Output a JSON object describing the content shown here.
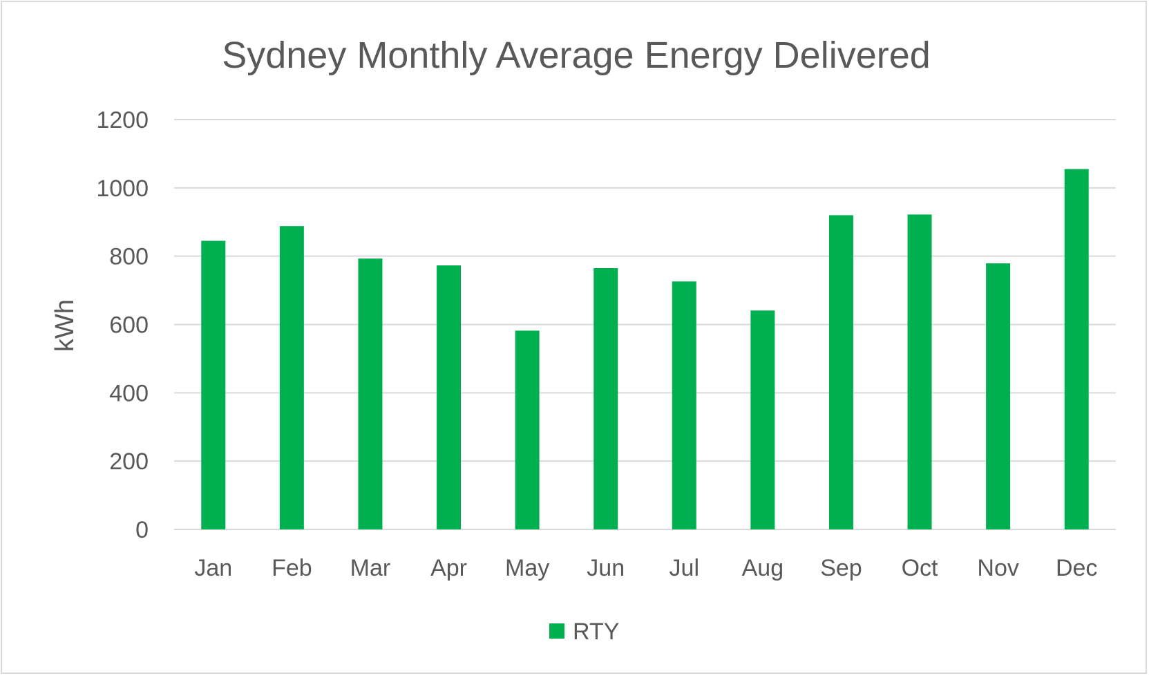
{
  "chart_data": {
    "type": "bar",
    "title": "Sydney Monthly Average Energy Delivered",
    "xlabel": "",
    "ylabel": "kWh",
    "ylim": [
      0,
      1200
    ],
    "yticks": [
      0,
      200,
      400,
      600,
      800,
      1000,
      1200
    ],
    "grid": true,
    "legend_position": "bottom",
    "categories": [
      "Jan",
      "Feb",
      "Mar",
      "Apr",
      "May",
      "Jun",
      "Jul",
      "Aug",
      "Sep",
      "Oct",
      "Nov",
      "Dec"
    ],
    "series": [
      {
        "name": "RTY",
        "color": "#00b050",
        "values": [
          845,
          888,
          793,
          773,
          582,
          765,
          726,
          641,
          920,
          922,
          779,
          1055
        ]
      }
    ]
  }
}
